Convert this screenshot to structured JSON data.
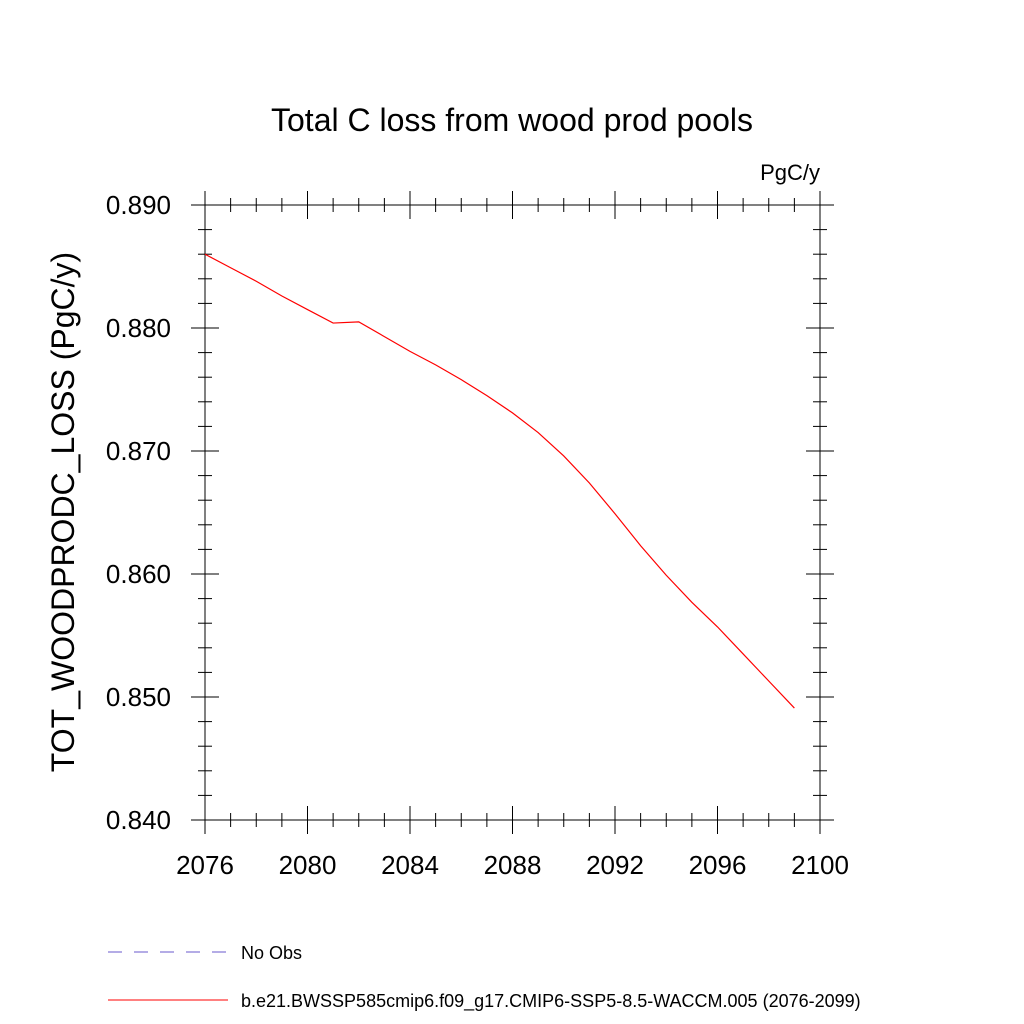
{
  "chart_data": {
    "type": "line",
    "title": "Total C loss from wood prod pools",
    "units": "PgC/y",
    "ylabel": "TOT_WOODPRODC_LOSS  (PgC/y)",
    "xlabel": "",
    "xlim": [
      2076,
      2100
    ],
    "ylim": [
      0.84,
      0.89
    ],
    "x_ticks": [
      2076,
      2080,
      2084,
      2088,
      2092,
      2096,
      2100
    ],
    "y_ticks": [
      0.84,
      0.85,
      0.86,
      0.87,
      0.88,
      0.89
    ],
    "x_tick_labels": [
      "2076",
      "2080",
      "2084",
      "2088",
      "2092",
      "2096",
      "2100"
    ],
    "y_tick_labels": [
      "0.840",
      "0.850",
      "0.860",
      "0.870",
      "0.880",
      "0.890"
    ],
    "grid": false,
    "legend_position": "bottom-left",
    "series": [
      {
        "name": "No Obs",
        "color": "#6a5acd",
        "style": "dashed",
        "x": [],
        "y": []
      },
      {
        "name": "b.e21.BWSSP585cmip6.f09_g17.CMIP6-SSP5-8.5-WACCM.005 (2076-2099)",
        "color": "#ff0000",
        "style": "solid",
        "x": [
          2076,
          2077,
          2078,
          2079,
          2080,
          2081,
          2082,
          2083,
          2084,
          2085,
          2086,
          2087,
          2088,
          2089,
          2090,
          2091,
          2092,
          2093,
          2094,
          2095,
          2096,
          2097,
          2098,
          2099
        ],
        "y": [
          0.886,
          0.8849,
          0.8838,
          0.8826,
          0.8815,
          0.8804,
          0.8805,
          0.8793,
          0.8781,
          0.877,
          0.8758,
          0.8745,
          0.8731,
          0.8715,
          0.8696,
          0.8674,
          0.8649,
          0.8623,
          0.8599,
          0.8577,
          0.8557,
          0.8535,
          0.8513,
          0.8491
        ]
      }
    ]
  }
}
